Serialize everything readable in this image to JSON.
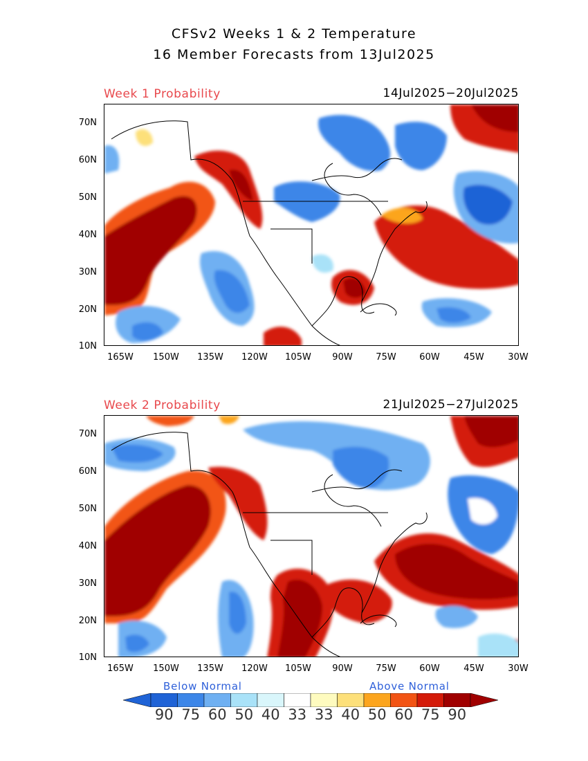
{
  "title_line1": "CFSv2 Weeks 1 & 2 Temperature",
  "title_line2": "16 Member Forecasts from 13Jul2025",
  "panels": [
    {
      "label": "Week 1 Probability",
      "dates": "14Jul2025−20Jul2025"
    },
    {
      "label": "Week 2 Probability",
      "dates": "21Jul2025−27Jul2025"
    }
  ],
  "lat_labels": [
    "70N",
    "60N",
    "50N",
    "40N",
    "30N",
    "20N",
    "10N"
  ],
  "lon_labels": [
    "165W",
    "150W",
    "135W",
    "120W",
    "105W",
    "90W",
    "75W",
    "60W",
    "45W",
    "30W"
  ],
  "legend": {
    "below_label": "Below Normal",
    "above_label": "Above Normal",
    "values": [
      "90",
      "75",
      "60",
      "50",
      "40",
      "33",
      "33",
      "40",
      "50",
      "60",
      "75",
      "90"
    ],
    "colors": [
      "#1f63d6",
      "#3c86e8",
      "#6fb0f2",
      "#a9e2f8",
      "#d9f6fb",
      "#ffffff",
      "#fefbbf",
      "#fde07a",
      "#fca51e",
      "#f25414",
      "#d41a08",
      "#a00000"
    ]
  }
}
